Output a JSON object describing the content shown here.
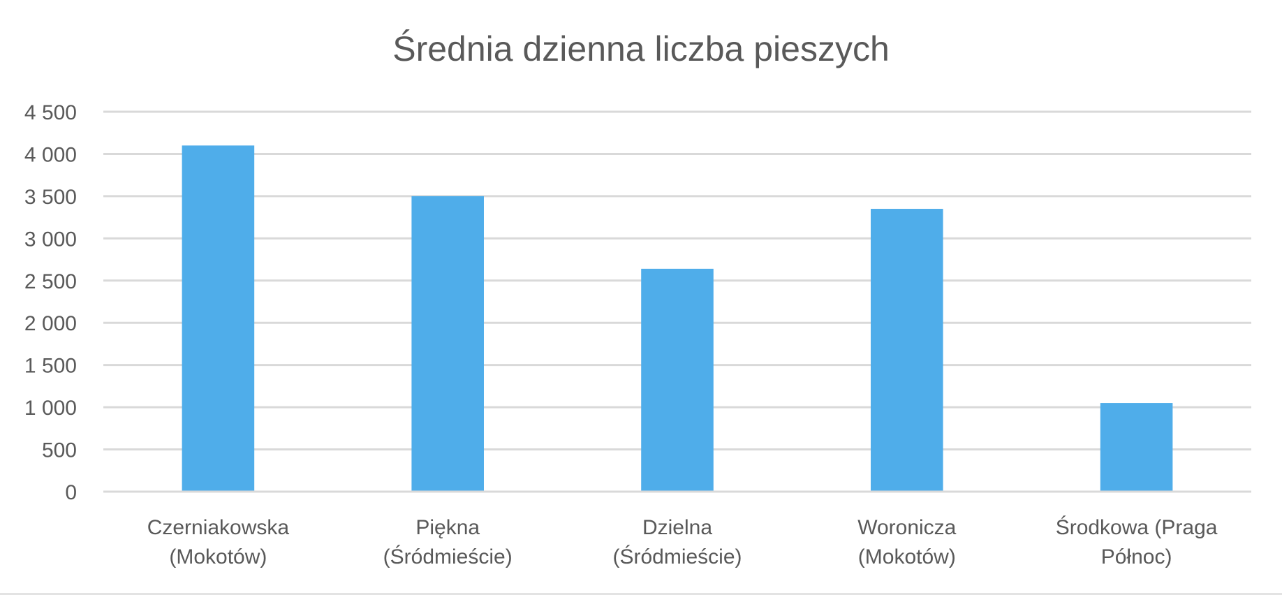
{
  "chart_data": {
    "type": "bar",
    "title": "Średnia dzienna liczba pieszych",
    "xlabel": "",
    "ylabel": "",
    "categories": [
      [
        "Czerniakowska",
        "(Mokotów)"
      ],
      [
        "Piękna",
        "(Śródmieście)"
      ],
      [
        "Dzielna",
        "(Śródmieście)"
      ],
      [
        "Woronicza",
        "(Mokotów)"
      ],
      [
        "Środkowa (Praga",
        "Północ)"
      ]
    ],
    "values": [
      4100,
      3500,
      2640,
      3350,
      1050
    ],
    "ylim": [
      0,
      4500
    ],
    "yticks": [
      0,
      500,
      1000,
      1500,
      2000,
      2500,
      3000,
      3500,
      4000,
      4500
    ],
    "ytick_labels": [
      "0",
      "500",
      "1 000",
      "1 500",
      "2 000",
      "2 500",
      "3 000",
      "3 500",
      "4 000",
      "4 500"
    ],
    "grid": true,
    "legend": "none",
    "bar_color": "#4FADEA"
  }
}
